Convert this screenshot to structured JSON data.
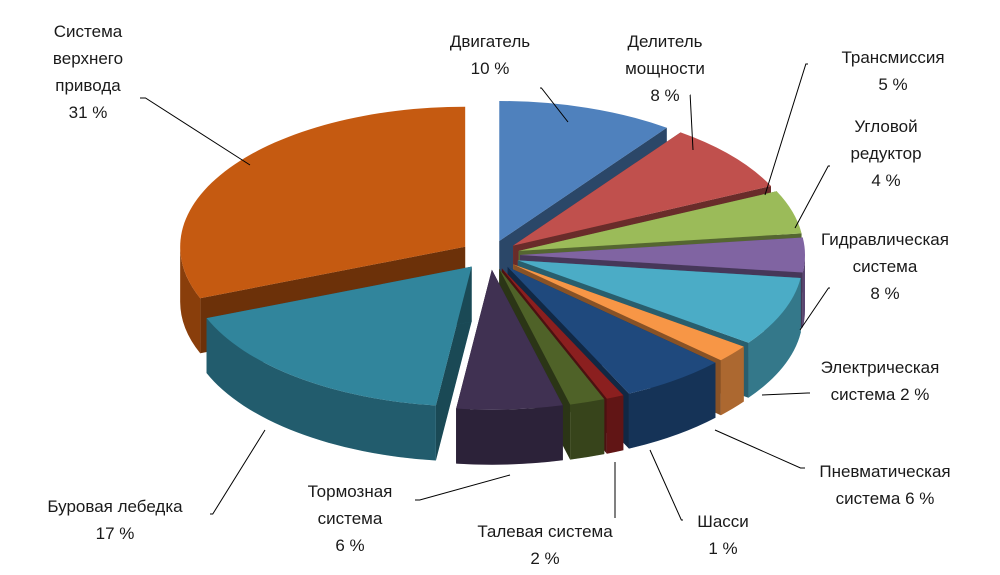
{
  "chart_data": {
    "type": "pie",
    "categories": [
      "Двигатель",
      "Делитель мощности",
      "Трансмиссия",
      "Угловой редуктор",
      "Гидравлическая система",
      "Электрическая система",
      "Пневматическая система",
      "Шасси",
      "Талевая система",
      "Тормозная система",
      "Буровая лебедка",
      "Система верхнего привода"
    ],
    "values": [
      10,
      8,
      5,
      4,
      8,
      2,
      6,
      1,
      2,
      6,
      17,
      31
    ],
    "value_labels": [
      "10 %",
      "8 %",
      "5 %",
      "4 %",
      "8 %",
      "2 %",
      "6 %",
      "1 %",
      "2 %",
      "6 %",
      "17 %",
      "31 %"
    ],
    "colors": [
      "#4f81bd",
      "#c0504d",
      "#9bbb59",
      "#8064a2",
      "#4bacc6",
      "#f79646",
      "#1f497d",
      "#8b1f1f",
      "#4f6228",
      "#403152",
      "#31859c",
      "#c55a11"
    ]
  }
}
